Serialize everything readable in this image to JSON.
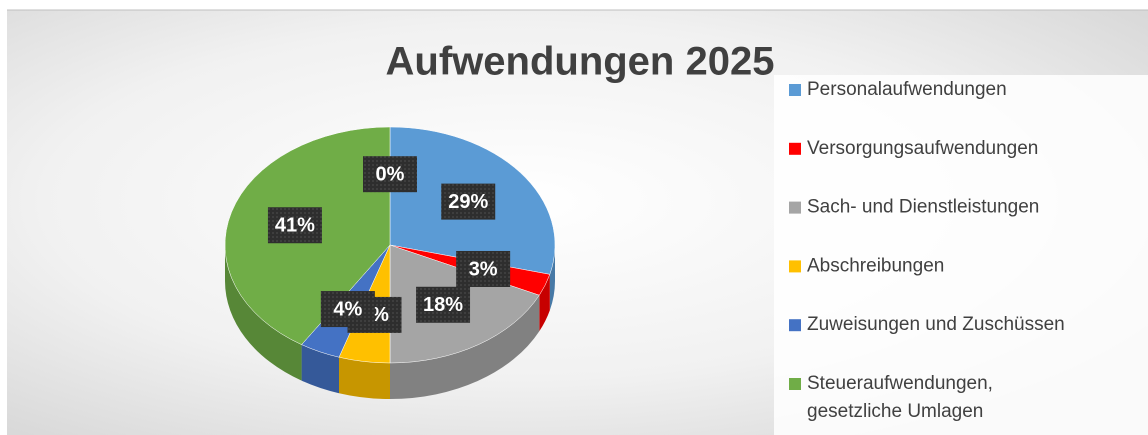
{
  "chart_data": {
    "type": "pie",
    "title": "Aufwendungen 2025",
    "categories": [
      "Personalaufwendungen",
      "Versorgungsaufwendungen",
      "Sach- und Dienstleistungen",
      "Abschreibungen",
      "Zuweisungen und Zuschüssen",
      "Steueraufwendungen, gesetzliche Umlagen",
      null
    ],
    "values": [
      29,
      3,
      18,
      5,
      4,
      41,
      0
    ],
    "value_labels": [
      "29%",
      "3%",
      "18%",
      "5%",
      "4%",
      "41%",
      "0%"
    ],
    "colors": [
      "#5b9bd5",
      "#ff0000",
      "#a5a5a5",
      "#ffc000",
      "#4472c4",
      "#70ad47",
      "#264478"
    ],
    "legend": "right"
  }
}
